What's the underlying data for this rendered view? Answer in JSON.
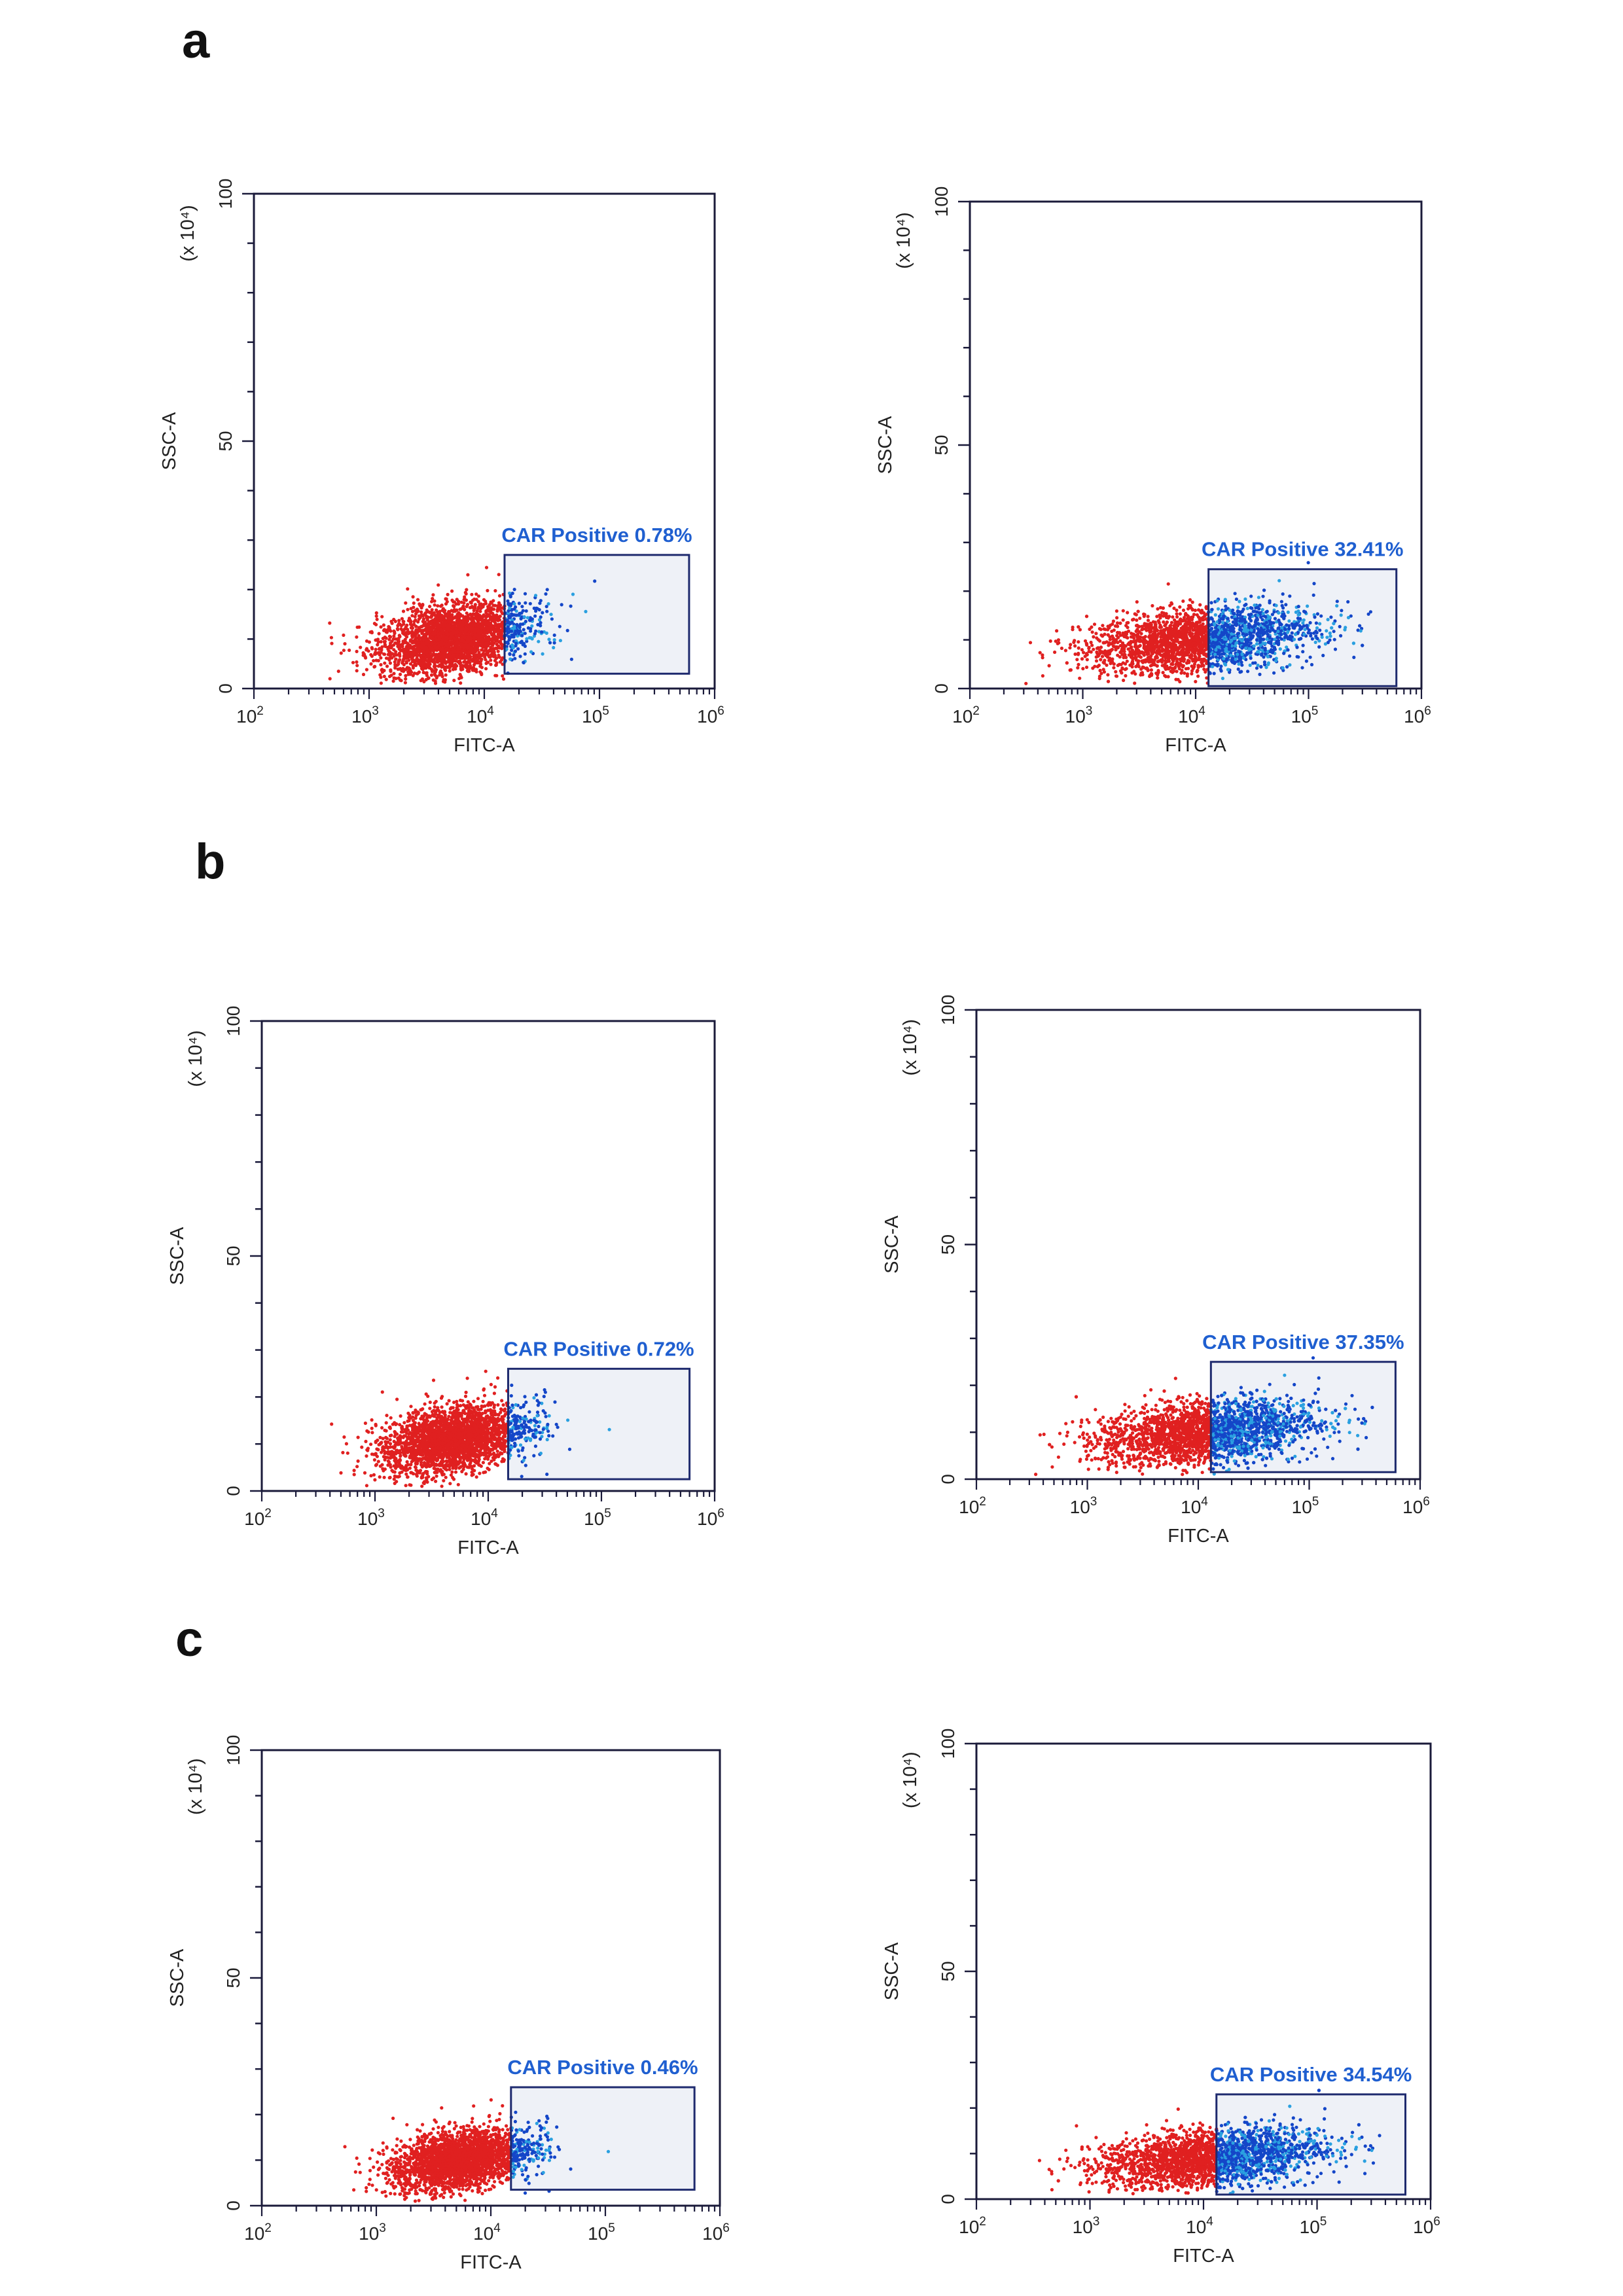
{
  "colors": {
    "frame": "#1a1a3a",
    "gate_stroke": "#1e2a6e",
    "gate_fill": "#eef1f7",
    "negative_population": "#e02020",
    "positive_population": "#1446c8",
    "positive_population_light": "#2aa0e0",
    "gate_label": "#1f5fd0"
  },
  "chart_data": [
    {
      "panel": "a",
      "type": "scatter",
      "xlabel": "FITC-A",
      "ylabel": "SSC-A",
      "y_multiplier": "(x 10⁴)",
      "x_scale": "log",
      "xlim": [
        100,
        1000000
      ],
      "x_ticks": [
        100,
        1000,
        10000,
        100000,
        1000000
      ],
      "ylim": [
        0,
        100
      ],
      "y_ticks": [
        0,
        50,
        100
      ],
      "gate": {
        "label": "CAR Positive 0.78%",
        "x_range": [
          15000,
          600000
        ],
        "y_range": [
          3,
          27
        ],
        "percent_positive": 0.78
      },
      "population": {
        "center_fitc": 5500,
        "center_ssc": 10,
        "fitc_spread_decades": 0.32,
        "ssc_spread": 3.5
      }
    },
    {
      "panel": "a",
      "type": "scatter",
      "xlabel": "FITC-A",
      "ylabel": "SSC-A",
      "y_multiplier": "(x 10⁴)",
      "x_scale": "log",
      "xlim": [
        100,
        1000000
      ],
      "x_ticks": [
        100,
        1000,
        10000,
        100000,
        1000000
      ],
      "ylim": [
        0,
        100
      ],
      "y_ticks": [
        0,
        50,
        100
      ],
      "gate": {
        "label": "CAR Positive 32.41%",
        "x_range": [
          13000,
          600000
        ],
        "y_range": [
          0.5,
          24.5
        ],
        "percent_positive": 32.41
      },
      "population": {
        "center_fitc": 11000,
        "center_ssc": 10,
        "fitc_spread_decades": 0.5,
        "ssc_spread": 3.2
      }
    },
    {
      "panel": "b",
      "type": "scatter",
      "xlabel": "FITC-A",
      "ylabel": "SSC-A",
      "y_multiplier": "(x 10⁴)",
      "x_scale": "log",
      "xlim": [
        100,
        1000000
      ],
      "x_ticks": [
        100,
        1000,
        10000,
        100000,
        1000000
      ],
      "ylim": [
        0,
        100
      ],
      "y_ticks": [
        0,
        50,
        100
      ],
      "gate": {
        "label": "CAR Positive 0.72%",
        "x_range": [
          15000,
          600000
        ],
        "y_range": [
          2.5,
          26
        ],
        "percent_positive": 0.72
      },
      "population": {
        "center_fitc": 5000,
        "center_ssc": 11,
        "fitc_spread_decades": 0.32,
        "ssc_spread": 3.5
      }
    },
    {
      "panel": "b",
      "type": "scatter",
      "xlabel": "FITC-A",
      "ylabel": "SSC-A",
      "y_multiplier": "(x 10⁴)",
      "x_scale": "log",
      "xlim": [
        100,
        1000000
      ],
      "x_ticks": [
        100,
        1000,
        10000,
        100000,
        1000000
      ],
      "ylim": [
        0,
        100
      ],
      "y_ticks": [
        0,
        50,
        100
      ],
      "gate": {
        "label": "CAR Positive 37.35%",
        "x_range": [
          13000,
          600000
        ],
        "y_range": [
          1.5,
          25
        ],
        "percent_positive": 37.35
      },
      "population": {
        "center_fitc": 12000,
        "center_ssc": 10,
        "fitc_spread_decades": 0.5,
        "ssc_spread": 3.2
      }
    },
    {
      "panel": "c",
      "type": "scatter",
      "xlabel": "FITC-A",
      "ylabel": "SSC-A",
      "y_multiplier": "(x 10⁴)",
      "x_scale": "log",
      "xlim": [
        100,
        1000000
      ],
      "x_ticks": [
        100,
        1000,
        10000,
        100000,
        1000000
      ],
      "ylim": [
        0,
        100
      ],
      "y_ticks": [
        0,
        50,
        100
      ],
      "gate": {
        "label": "CAR Positive 0.46%",
        "x_range": [
          15000,
          600000
        ],
        "y_range": [
          3.5,
          26
        ],
        "percent_positive": 0.46
      },
      "population": {
        "center_fitc": 5500,
        "center_ssc": 10,
        "fitc_spread_decades": 0.3,
        "ssc_spread": 3.2
      }
    },
    {
      "panel": "c",
      "type": "scatter",
      "xlabel": "FITC-A",
      "ylabel": "SSC-A",
      "y_multiplier": "(x 10⁴)",
      "x_scale": "log",
      "xlim": [
        100,
        1000000
      ],
      "x_ticks": [
        100,
        1000,
        10000,
        100000,
        1000000
      ],
      "ylim": [
        0,
        100
      ],
      "y_ticks": [
        0,
        50,
        100
      ],
      "gate": {
        "label": "CAR Positive 34.54%",
        "x_range": [
          13000,
          600000
        ],
        "y_range": [
          1,
          23
        ],
        "percent_positive": 34.54
      },
      "population": {
        "center_fitc": 11500,
        "center_ssc": 9,
        "fitc_spread_decades": 0.5,
        "ssc_spread": 3.0
      }
    }
  ]
}
